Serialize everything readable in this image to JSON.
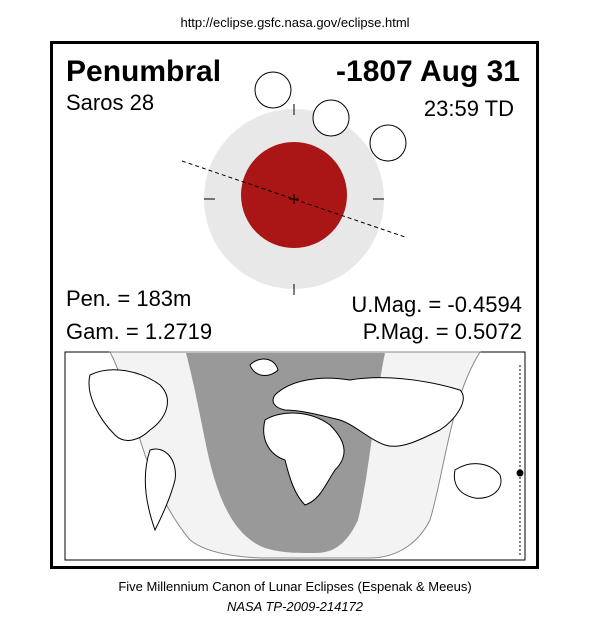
{
  "header": {
    "url": "http://eclipse.gsfc.nasa.gov/eclipse.html"
  },
  "eclipse": {
    "type": "Penumbral",
    "date": "-1807 Aug 31",
    "saros": "Saros  28",
    "time": "23:59 TD",
    "pen": "Pen. = 183m",
    "gam": "Gam. = 1.2719",
    "umag": "U.Mag. = -0.4594",
    "pmag": "P.Mag. = 0.5072"
  },
  "footer": {
    "title": "Five Millennium Canon of Lunar Eclipses (Espenak & Meeus)",
    "ref": "NASA TP-2009-214172"
  }
}
